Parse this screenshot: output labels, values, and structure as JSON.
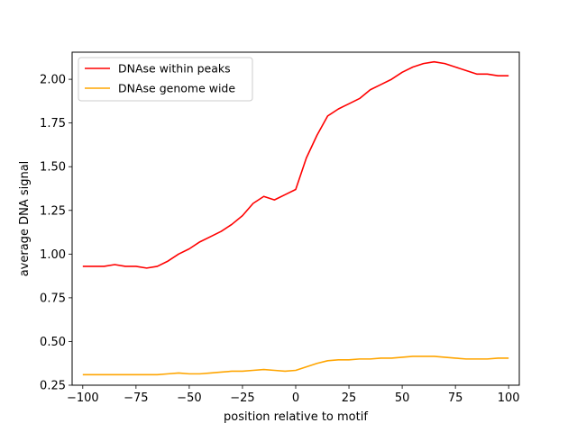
{
  "chart_data": {
    "type": "line",
    "title": "",
    "xlabel": "position relative to motif",
    "ylabel": "average DNA signal",
    "xlim": [
      -105,
      105
    ],
    "ylim": [
      0.25,
      2.155
    ],
    "xticks": [
      -100,
      -75,
      -50,
      -25,
      0,
      25,
      50,
      75,
      100
    ],
    "xtick_labels": [
      "−100",
      "−75",
      "−50",
      "−25",
      "0",
      "25",
      "50",
      "75",
      "100"
    ],
    "yticks": [
      0.25,
      0.5,
      0.75,
      1.0,
      1.25,
      1.5,
      1.75,
      2.0
    ],
    "ytick_labels": [
      "0.25",
      "0.50",
      "0.75",
      "1.00",
      "1.25",
      "1.50",
      "1.75",
      "2.00"
    ],
    "grid": false,
    "legend_position": "upper-left",
    "series": [
      {
        "name": "DNAse within peaks",
        "color": "#ff0000",
        "x": [
          -100,
          -95,
          -90,
          -85,
          -80,
          -75,
          -70,
          -65,
          -60,
          -55,
          -50,
          -45,
          -40,
          -35,
          -30,
          -25,
          -20,
          -15,
          -10,
          -5,
          0,
          5,
          10,
          15,
          20,
          25,
          30,
          35,
          40,
          45,
          50,
          55,
          60,
          65,
          70,
          75,
          80,
          85,
          90,
          95,
          100
        ],
        "y": [
          0.93,
          0.93,
          0.93,
          0.94,
          0.93,
          0.93,
          0.92,
          0.93,
          0.96,
          1.0,
          1.03,
          1.07,
          1.1,
          1.13,
          1.17,
          1.22,
          1.29,
          1.33,
          1.31,
          1.34,
          1.37,
          1.55,
          1.68,
          1.79,
          1.83,
          1.86,
          1.89,
          1.94,
          1.97,
          2.0,
          2.04,
          2.07,
          2.09,
          2.1,
          2.09,
          2.07,
          2.05,
          2.03,
          2.03,
          2.02,
          2.02
        ]
      },
      {
        "name": "DNAse genome wide",
        "color": "#ffa500",
        "x": [
          -100,
          -95,
          -90,
          -85,
          -80,
          -75,
          -70,
          -65,
          -60,
          -55,
          -50,
          -45,
          -40,
          -35,
          -30,
          -25,
          -20,
          -15,
          -10,
          -5,
          0,
          5,
          10,
          15,
          20,
          25,
          30,
          35,
          40,
          45,
          50,
          55,
          60,
          65,
          70,
          75,
          80,
          85,
          90,
          95,
          100
        ],
        "y": [
          0.31,
          0.31,
          0.31,
          0.31,
          0.31,
          0.31,
          0.31,
          0.31,
          0.315,
          0.32,
          0.315,
          0.315,
          0.32,
          0.325,
          0.33,
          0.33,
          0.335,
          0.34,
          0.335,
          0.33,
          0.335,
          0.355,
          0.375,
          0.39,
          0.395,
          0.395,
          0.4,
          0.4,
          0.405,
          0.405,
          0.41,
          0.415,
          0.415,
          0.415,
          0.41,
          0.405,
          0.4,
          0.4,
          0.4,
          0.405,
          0.405
        ]
      }
    ]
  }
}
